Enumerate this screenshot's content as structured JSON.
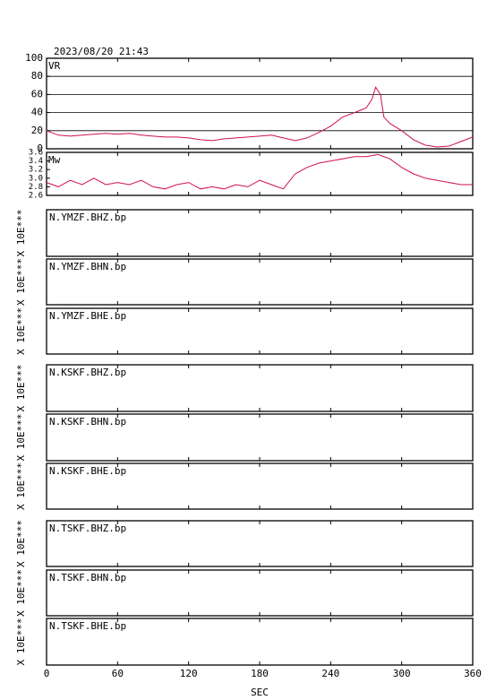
{
  "chart_data": {
    "type": "multi-panel",
    "title": "2023/08/20 21:43",
    "xlim": [
      0,
      360
    ],
    "xticks": [
      0,
      60,
      120,
      180,
      240,
      300,
      360
    ],
    "xlabel": "SEC",
    "panels": [
      {
        "type": "line",
        "label": "VR",
        "color": "#d0104c",
        "grid": true,
        "ylim": [
          0,
          100
        ],
        "yticks": [
          0,
          20,
          40,
          60,
          80,
          100
        ],
        "x": [
          0,
          10,
          20,
          30,
          40,
          50,
          60,
          70,
          80,
          90,
          100,
          110,
          120,
          130,
          140,
          150,
          160,
          170,
          180,
          190,
          200,
          210,
          220,
          230,
          240,
          250,
          260,
          270,
          275,
          278,
          282,
          285,
          290,
          300,
          310,
          320,
          330,
          340,
          350,
          360
        ],
        "values": [
          20,
          15,
          14,
          15,
          16,
          17,
          16,
          17,
          15,
          14,
          13,
          13,
          12,
          10,
          9,
          11,
          12,
          13,
          14,
          15,
          12,
          9,
          12,
          18,
          25,
          35,
          40,
          45,
          55,
          68,
          60,
          35,
          28,
          20,
          10,
          4,
          2,
          3,
          8,
          13
        ]
      },
      {
        "type": "line",
        "label": "Mw",
        "color": "#d0104c",
        "grid": false,
        "ylim": [
          2.6,
          3.6
        ],
        "yticks": [
          2.6,
          2.8,
          {
            "value": 3,
            "label": "3.0"
          },
          3.2,
          3.4,
          3.6
        ],
        "x": [
          0,
          10,
          20,
          30,
          40,
          50,
          60,
          70,
          80,
          90,
          100,
          110,
          120,
          130,
          140,
          150,
          160,
          170,
          180,
          190,
          200,
          210,
          220,
          230,
          240,
          250,
          260,
          270,
          280,
          290,
          300,
          310,
          320,
          330,
          340,
          350,
          360
        ],
        "values": [
          2.9,
          2.8,
          2.95,
          2.85,
          3.0,
          2.85,
          2.9,
          2.85,
          2.95,
          2.8,
          2.75,
          2.85,
          2.9,
          2.75,
          2.8,
          2.75,
          2.85,
          2.8,
          2.95,
          2.85,
          2.75,
          3.1,
          3.25,
          3.35,
          3.4,
          3.45,
          3.5,
          3.5,
          3.55,
          3.45,
          3.25,
          3.1,
          3.0,
          2.95,
          2.9,
          2.85,
          2.85
        ]
      },
      {
        "type": "trace",
        "label": "N.YMZF.BHZ.bp",
        "ylabel": "X 10E***"
      },
      {
        "type": "trace",
        "label": "N.YMZF.BHN.bp",
        "ylabel": "X 10E***"
      },
      {
        "type": "trace",
        "label": "N.YMZF.BHE.bp",
        "ylabel": "X 10E***"
      },
      {
        "type": "trace",
        "label": "N.KSKF.BHZ.bp",
        "ylabel": "X 10E***"
      },
      {
        "type": "trace",
        "label": "N.KSKF.BHN.bp",
        "ylabel": "X 10E***"
      },
      {
        "type": "trace",
        "label": "N.KSKF.BHE.bp",
        "ylabel": "X 10E***"
      },
      {
        "type": "trace",
        "label": "N.TSKF.BHZ.bp",
        "ylabel": "X 10E***"
      },
      {
        "type": "trace",
        "label": "N.TSKF.BHN.bp",
        "ylabel": "X 10E***"
      },
      {
        "type": "trace",
        "label": "N.TSKF.BHE.bp",
        "ylabel": "X 10E***"
      }
    ]
  }
}
